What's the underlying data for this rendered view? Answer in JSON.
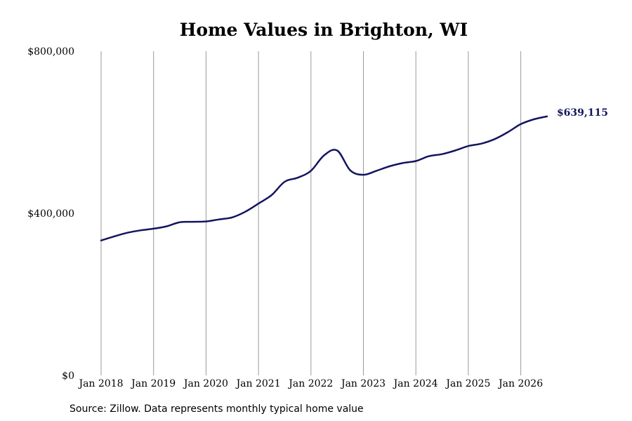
{
  "chart_data": {
    "type": "line",
    "title": "Home Values in Brighton, WI",
    "xlabel": "",
    "ylabel": "",
    "ylim": [
      0,
      800000
    ],
    "y_ticks": [
      0,
      400000,
      800000
    ],
    "y_tick_labels": [
      "$0",
      "$400,000",
      "$800,000"
    ],
    "x_ticks": [
      "2018-01",
      "2019-01",
      "2020-01",
      "2021-01",
      "2022-01",
      "2023-01",
      "2024-01",
      "2025-01",
      "2026-01"
    ],
    "x_tick_labels": [
      "Jan 2018",
      "Jan 2019",
      "Jan 2020",
      "Jan 2021",
      "Jan 2022",
      "Jan 2023",
      "Jan 2024",
      "Jan 2025",
      "Jan 2026"
    ],
    "grid": "vertical",
    "line_color": "#14145f",
    "end_label": "$639,115",
    "series": [
      {
        "x": [
          "2018-01",
          "2018-04",
          "2018-07",
          "2018-10",
          "2019-01",
          "2019-04",
          "2019-07",
          "2019-10",
          "2020-01",
          "2020-04",
          "2020-07",
          "2020-10",
          "2021-01",
          "2021-04",
          "2021-07",
          "2021-10",
          "2022-01",
          "2022-04",
          "2022-07",
          "2022-10",
          "2023-01",
          "2023-04",
          "2023-07",
          "2023-10",
          "2024-01",
          "2024-04",
          "2024-07",
          "2024-10",
          "2025-01",
          "2025-04",
          "2025-07",
          "2025-10",
          "2026-01",
          "2026-04",
          "2026-07"
        ],
        "values": [
          333000,
          343000,
          352000,
          358000,
          362000,
          368000,
          378000,
          379000,
          380000,
          385000,
          390000,
          404000,
          424000,
          445000,
          478000,
          488000,
          505000,
          543000,
          555000,
          506000,
          495000,
          505000,
          516000,
          524000,
          529000,
          541000,
          546000,
          555000,
          566000,
          572000,
          583000,
          600000,
          620000,
          632000,
          639115
        ]
      }
    ]
  },
  "source_note": "Source: Zillow. Data represents monthly typical home value"
}
